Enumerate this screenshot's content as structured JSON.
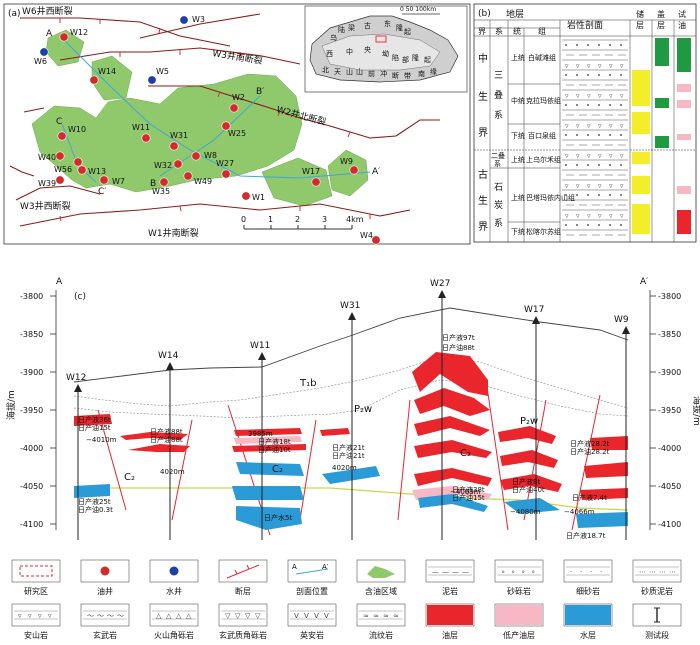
{
  "panel_a": {
    "label": "(a)",
    "faults": {
      "w6_west": "W6井西断裂",
      "w3_north": "W3井南断裂",
      "w2_north": "W2井北断裂",
      "w3_west": "W3井西断裂",
      "w1_south": "W1井南断裂"
    },
    "wells": [
      "W12",
      "W6",
      "W3",
      "W14",
      "W5",
      "W2",
      "W11",
      "W10",
      "W25",
      "W31",
      "W40",
      "W8",
      "W32",
      "W56",
      "W13",
      "W39",
      "W7",
      "W49",
      "W35",
      "W27",
      "W17",
      "W9",
      "W1",
      "W4"
    ],
    "points": {
      "A": "A",
      "B_prime": "B′",
      "C": "C",
      "C_prime": "C′",
      "B": "B",
      "A_prime": "A′"
    },
    "scale": {
      "ticks": [
        "0",
        "1",
        "2",
        "3",
        "4km"
      ]
    },
    "inset": {
      "scale": "0 50 100km",
      "regions": [
        "乌",
        "陆",
        "梁",
        "古",
        "东",
        "隆",
        "起",
        "西",
        "中",
        "央",
        "坳",
        "陷",
        "部",
        "隆",
        "起",
        "北",
        "天",
        "山",
        "山",
        "前",
        "冲",
        "断",
        "带",
        "南",
        "缘"
      ]
    }
  },
  "panel_b": {
    "label": "(b)",
    "header": {
      "strata": "地层",
      "jie": "界",
      "xi": "系",
      "tong": "统",
      "zu": "组",
      "litho": "岩性剖面",
      "ch1": "储",
      "ch2": "层",
      "ch3": "盖",
      "ch4": "层",
      "ch5": "试",
      "ch6": "油"
    },
    "jie": [
      "中",
      "生",
      "界",
      "古",
      "生",
      "界"
    ],
    "xi": [
      "三",
      "叠",
      "系",
      "二叠",
      "系",
      "石",
      "炭",
      "系"
    ],
    "rows": [
      {
        "tong": "上统",
        "zu": "白碱滩组"
      },
      {
        "tong": "中统",
        "zu": "克拉玛依组"
      },
      {
        "tong": "下统",
        "zu": "百口泉组"
      },
      {
        "tong": "上统",
        "zu": "上乌尔禾组"
      },
      {
        "tong": "上统",
        "zu": "巴塔玛依内山组"
      },
      {
        "tong": "下统",
        "zu": "松喀尔苏组"
      }
    ]
  },
  "panel_c": {
    "label": "(c)",
    "left_end": "A",
    "right_end": "A′",
    "axis_title": "海拔/m",
    "y_ticks": [
      "-3800",
      "-3850",
      "-3900",
      "-3950",
      "-4000",
      "-4050",
      "-4100"
    ],
    "wells": [
      "W12",
      "W14",
      "W11",
      "W31",
      "W27",
      "W17",
      "W9"
    ],
    "formations": {
      "t1b": "T₁b",
      "p2w_left": "P₂w",
      "p2w_right": "P₂w",
      "c2_a": "C₂",
      "c2_b": "C₂",
      "c2_c": "C₂"
    },
    "annotations": [
      "日产液36t",
      "日产油15t",
      "−4010m",
      "日产液25t",
      "日产油0.3t",
      "日产液88t",
      "日产油88t",
      "4020m",
      "3985m",
      "日产液18t",
      "日产油10t",
      "日产水5t",
      "日产液21t",
      "日产油21t",
      "4020m",
      "日产液97t",
      "日产油88t",
      "−4063m",
      "日产液38t",
      "日产油15t",
      "日产液8t",
      "日产油40t",
      "−4080m",
      "日产液28.2t",
      "日产油28.2t",
      "日产液7.4t",
      "−4066m",
      "日产液18.7t"
    ]
  },
  "legend": [
    {
      "label": "研究区",
      "icon": "study-area-icon"
    },
    {
      "label": "油井",
      "icon": "oil-well-icon"
    },
    {
      "label": "水井",
      "icon": "water-well-icon"
    },
    {
      "label": "断层",
      "icon": "fault-icon"
    },
    {
      "label": "剖面位置",
      "icon": "section-line-icon"
    },
    {
      "label": "含油区域",
      "icon": "oil-area-icon"
    },
    {
      "label": "泥岩",
      "icon": "mudstone-icon"
    },
    {
      "label": "砂砾岩",
      "icon": "conglomerate-icon"
    },
    {
      "label": "细砂岩",
      "icon": "fine-sandstone-icon"
    },
    {
      "label": "砂质泥岩",
      "icon": "sandy-mudstone-icon"
    },
    {
      "label": "安山岩",
      "icon": "andesite-icon"
    },
    {
      "label": "玄武岩",
      "icon": "basalt-icon"
    },
    {
      "label": "火山角砾岩",
      "icon": "volcanic-breccia-icon"
    },
    {
      "label": "玄武质角砾岩",
      "icon": "basaltic-breccia-icon"
    },
    {
      "label": "英安岩",
      "icon": "dacite-icon"
    },
    {
      "label": "流纹岩",
      "icon": "rhyolite-icon"
    },
    {
      "label": "油层",
      "icon": "oil-layer-icon"
    },
    {
      "label": "低产油层",
      "icon": "low-oil-layer-icon"
    },
    {
      "label": "水层",
      "icon": "water-layer-icon"
    },
    {
      "label": "测试段",
      "icon": "test-interval-icon"
    }
  ],
  "colors": {
    "oil": "#e8262b",
    "low_oil": "#f7b8c4",
    "water": "#2b9bd8",
    "oil_area": "#8fc96b",
    "fault": "#e8262b",
    "reservoir": "#f4ee2a",
    "cap": "#1f9a43"
  }
}
